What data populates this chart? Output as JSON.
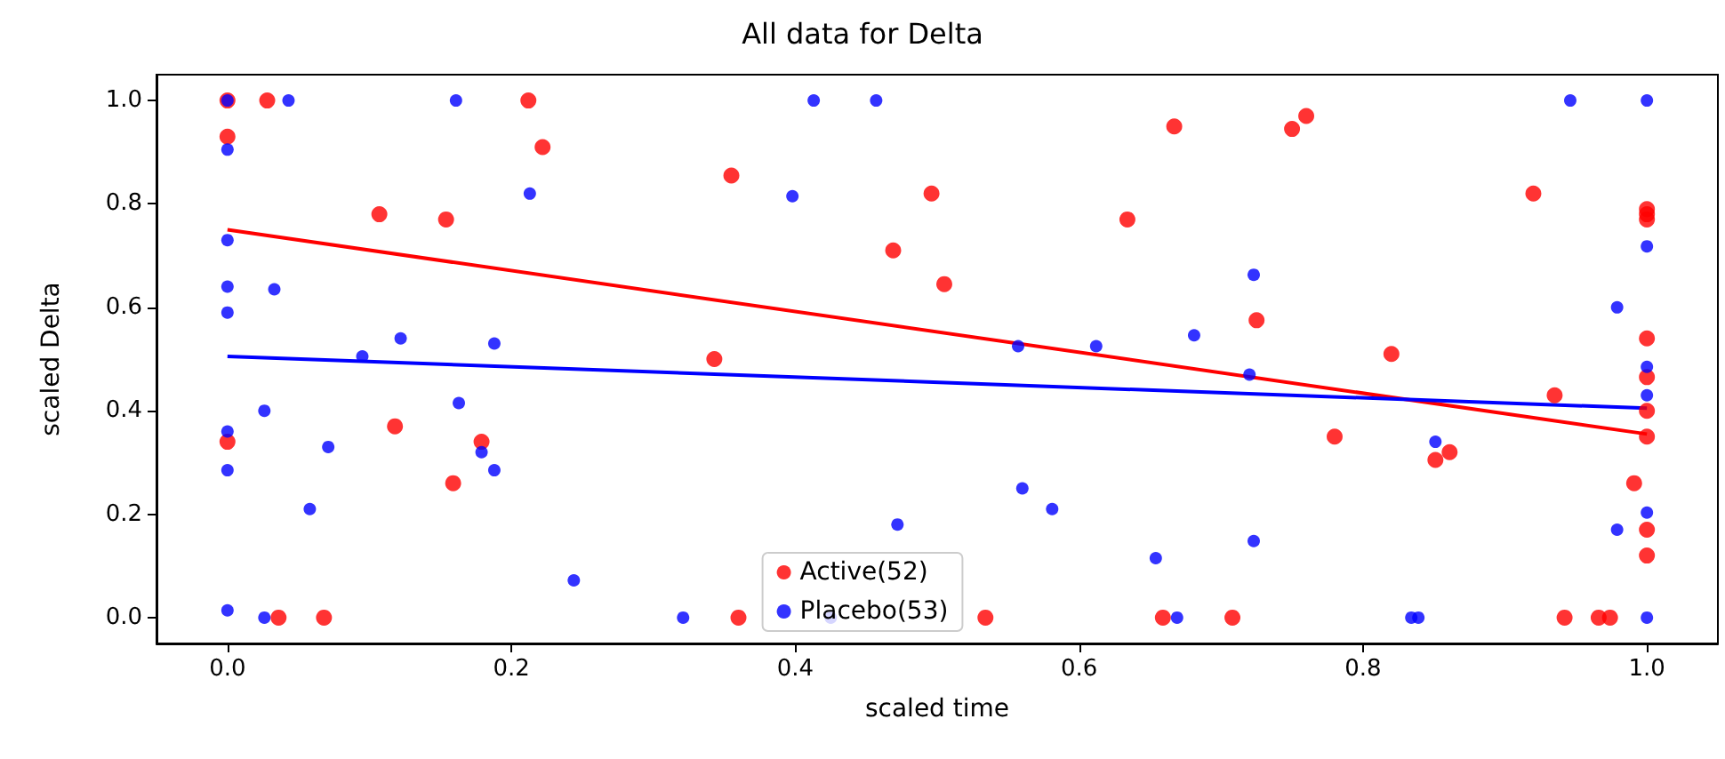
{
  "chart_data": {
    "type": "scatter",
    "title": "All data for Delta",
    "xlabel": "scaled time",
    "ylabel": "scaled Delta",
    "xlim": [
      -0.05,
      1.05
    ],
    "ylim": [
      -0.05,
      1.05
    ],
    "xticks": [
      {
        "value": 0,
        "label": "0.0"
      },
      {
        "value": 0.2,
        "label": "0.2"
      },
      {
        "value": 0.4,
        "label": "0.4"
      },
      {
        "value": 0.6,
        "label": "0.6"
      },
      {
        "value": 0.8,
        "label": "0.8"
      },
      {
        "value": 1,
        "label": "1.0"
      }
    ],
    "yticks": [
      {
        "value": 0,
        "label": "0.0"
      },
      {
        "value": 0.2,
        "label": "0.2"
      },
      {
        "value": 0.4,
        "label": "0.4"
      },
      {
        "value": 0.6,
        "label": "0.6"
      },
      {
        "value": 0.8,
        "label": "0.8"
      },
      {
        "value": 1,
        "label": "1.0"
      }
    ],
    "grid": false,
    "legend": "bottom",
    "series": [
      {
        "name": "Active(52)",
        "color": "#ff0000",
        "marker": "circle",
        "x": [
          0,
          0,
          0,
          0.028,
          0.036,
          0.068,
          0.107,
          0.118,
          0.154,
          0.159,
          0.179,
          0.212,
          0.222,
          0.343,
          0.355,
          0.36,
          0.469,
          0.496,
          0.505,
          0.534,
          0.634,
          0.659,
          0.667,
          0.708,
          0.725,
          0.75,
          0.76,
          0.78,
          0.82,
          0.851,
          0.861,
          0.92,
          0.935,
          0.942,
          0.966,
          0.974,
          0.991,
          1,
          1,
          1,
          1,
          1,
          1,
          1,
          1,
          1
        ],
        "values": [
          1.0,
          0.93,
          0.34,
          1.0,
          0,
          0,
          0.78,
          0.37,
          0.77,
          0.26,
          0.34,
          1.0,
          0.91,
          0.5,
          0.855,
          0,
          0.71,
          0.82,
          0.645,
          0,
          0.77,
          0,
          0.95,
          0,
          0.575,
          0.945,
          0.97,
          0.35,
          0.51,
          0.305,
          0.32,
          0.82,
          0.43,
          0,
          0,
          0,
          0.26,
          0.79,
          0.78,
          0.77,
          0.54,
          0.465,
          0.4,
          0.35,
          0.17,
          0.12
        ]
      },
      {
        "name": "Placebo(53)",
        "color": "#0000ff",
        "marker": "circle",
        "x": [
          0,
          0,
          0,
          0,
          0,
          0,
          0,
          0,
          0.043,
          0.033,
          0.026,
          0.026,
          0.058,
          0.071,
          0.095,
          0.122,
          0.161,
          0.163,
          0.188,
          0.179,
          0.188,
          0.213,
          0.244,
          0.321,
          0.398,
          0.413,
          0.457,
          0.425,
          0.472,
          0.557,
          0.612,
          0.56,
          0.581,
          0.681,
          0.723,
          0.72,
          0.723,
          0.654,
          0.669,
          0.834,
          0.839,
          0.851,
          0.946,
          0.979,
          0.979,
          1,
          1,
          1,
          1,
          1,
          1
        ],
        "values": [
          1.0,
          0.905,
          0.73,
          0.64,
          0.59,
          0.36,
          0.285,
          0.014,
          1.0,
          0.635,
          0.4,
          0,
          0.21,
          0.33,
          0.505,
          0.54,
          1.0,
          0.415,
          0.53,
          0.32,
          0.285,
          0.82,
          0.072,
          0,
          0.815,
          1.0,
          1.0,
          0,
          0.18,
          0.525,
          0.525,
          0.25,
          0.21,
          0.546,
          0.663,
          0.47,
          0.148,
          0.115,
          0,
          0,
          0,
          0.34,
          1.0,
          0.6,
          0.17,
          1.0,
          0.718,
          0.485,
          0.43,
          0.203,
          0
        ]
      },
      {
        "type": "line",
        "marker": "none",
        "color": "#ff0000",
        "x": [
          0,
          1
        ],
        "values": [
          0.75,
          0.355
        ]
      },
      {
        "type": "line",
        "marker": "none",
        "color": "#0000ff",
        "x": [
          0,
          1
        ],
        "values": [
          0.505,
          0.405
        ]
      }
    ]
  }
}
